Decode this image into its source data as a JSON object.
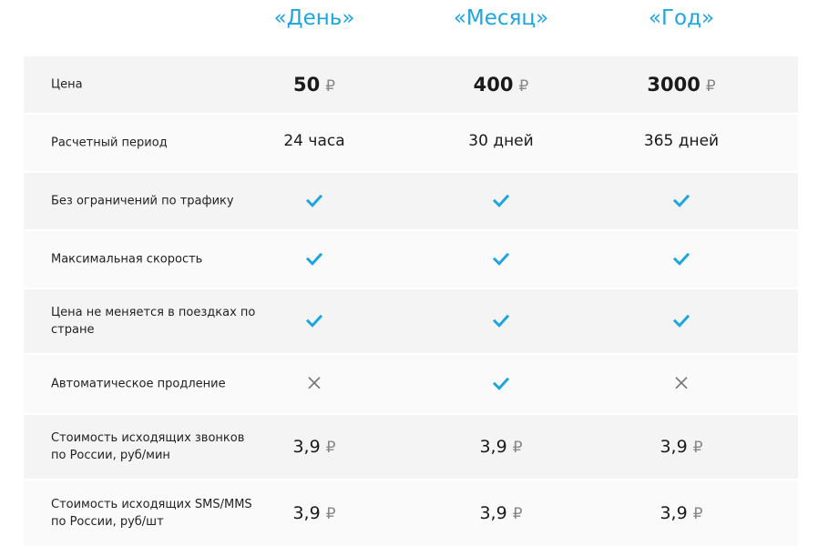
{
  "plans": [
    "«День»",
    "«Месяц»",
    "«Год»"
  ],
  "accent_color": "#1ca5df",
  "currency": "₽",
  "rows": [
    {
      "label": "Цена",
      "type": "price",
      "values": [
        "50",
        "400",
        "3000"
      ]
    },
    {
      "label": "Расчетный период",
      "type": "text",
      "values": [
        "24 часа",
        "30 дней",
        "365 дней"
      ]
    },
    {
      "label": "Без ограничений по трафику",
      "type": "bool",
      "values": [
        true,
        true,
        true
      ]
    },
    {
      "label": "Максимальная скорость",
      "type": "bool",
      "values": [
        true,
        true,
        true
      ]
    },
    {
      "label": "Цена не меняется в поездках по стране",
      "type": "bool",
      "values": [
        true,
        true,
        true
      ]
    },
    {
      "label": "Автоматическое продление",
      "type": "bool",
      "values": [
        false,
        true,
        false
      ]
    },
    {
      "label": "Стоимость исходящих звонков по России, руб/мин",
      "type": "rate",
      "values": [
        "3,9",
        "3,9",
        "3,9"
      ]
    },
    {
      "label": "Стоимость исходящих SMS/MMS по России, руб/шт",
      "type": "rate",
      "values": [
        "3,9",
        "3,9",
        "3,9"
      ]
    }
  ]
}
